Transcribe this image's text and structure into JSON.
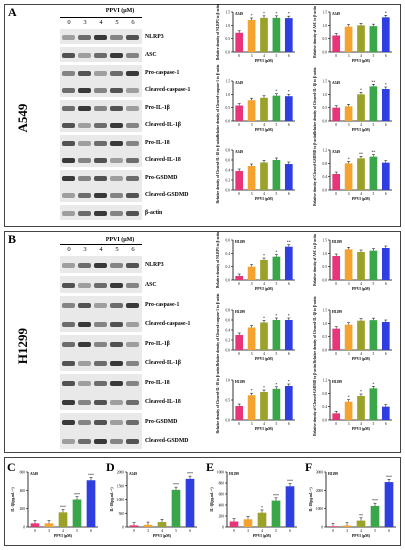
{
  "panels": {
    "A": {
      "label": "A",
      "title": "PPVI (μM)",
      "lanes": [
        "0",
        "3",
        "4",
        "5",
        "6"
      ],
      "cell": "A549",
      "rows": [
        "NLRP3",
        "ASC",
        "Pro-caspase-1",
        "Cleaved-caspase-1",
        "Pro-IL-1β",
        "Cleaved-IL-1β",
        "Pro-IL-18",
        "Cleaved-IL-18",
        "Pro-GSDMD",
        "Cleaved-GSDMD",
        "β-actin"
      ]
    },
    "B": {
      "label": "B",
      "title": "PPVI (μM)",
      "lanes": [
        "0",
        "3",
        "4",
        "5",
        "6"
      ],
      "cell": "H1299",
      "rows": [
        "NLRP3",
        "ASC",
        "Pro-caspase-1",
        "Cleaved-caspase-1",
        "Pro-IL-1β",
        "Cleaved-IL-1β",
        "Pro-IL-18",
        "Cleaved-IL-18",
        "Pro-GSDMD",
        "Cleaved-GSDMD"
      ]
    },
    "C": {
      "label": "C"
    },
    "D": {
      "label": "D"
    },
    "E": {
      "label": "E"
    },
    "F": {
      "label": "F"
    }
  },
  "colors": [
    "#e8357a",
    "#f4a330",
    "#9aa22a",
    "#3aa64a",
    "#2f3ee0"
  ],
  "chart_data": [
    {
      "type": "bar",
      "cell": "A549",
      "ylabel": "Relative density of NLRP3 to β-actin",
      "categories": [
        "0",
        "3",
        "4",
        "5",
        "6"
      ],
      "values": [
        0.72,
        1.2,
        1.28,
        1.28,
        1.27
      ],
      "ylim": [
        0,
        1.5
      ],
      "ticks": [
        "0.0",
        "0.5",
        "1.0",
        "1.5"
      ],
      "sig": [
        "",
        "*",
        "*",
        "*",
        "*"
      ],
      "xlabel": "PPVI (μM)"
    },
    {
      "type": "bar",
      "cell": "A549",
      "ylabel": "Relative density of ASC to β-actin",
      "categories": [
        "0",
        "3",
        "4",
        "5",
        "6"
      ],
      "values": [
        0.62,
        0.95,
        1.0,
        0.97,
        1.3
      ],
      "ylim": [
        0,
        1.5
      ],
      "ticks": [
        "0.0",
        "0.5",
        "1.0",
        "1.5"
      ],
      "sig": [
        "",
        "",
        "",
        "",
        "*"
      ],
      "xlabel": "PPVI (μM)"
    },
    {
      "type": "bar",
      "cell": "A549",
      "ylabel": "Relative density of Cleaved-caspase-1 to β-actin",
      "categories": [
        "0",
        "3",
        "4",
        "5",
        "6"
      ],
      "values": [
        0.58,
        0.78,
        0.87,
        0.95,
        0.93
      ],
      "ylim": [
        0,
        1.5
      ],
      "ticks": [
        "0.0",
        "0.5",
        "1.0",
        "1.5"
      ],
      "sig": [
        "",
        "",
        "",
        "*",
        "*"
      ],
      "xlabel": "PPVI (μM)"
    },
    {
      "type": "bar",
      "cell": "A549",
      "ylabel": "Relative density of Cleaved-IL-1β to β-actin",
      "categories": [
        "0",
        "3",
        "4",
        "5",
        "6"
      ],
      "values": [
        0.5,
        0.55,
        1.0,
        1.3,
        1.2
      ],
      "ylim": [
        0,
        1.5
      ],
      "ticks": [
        "0.0",
        "0.5",
        "1.0",
        "1.5"
      ],
      "sig": [
        "",
        "",
        "*",
        "**",
        "*"
      ],
      "xlabel": "PPVI (μM)"
    },
    {
      "type": "bar",
      "cell": "A549",
      "ylabel": "Relative density of Cleaved-IL-18 to β-actin",
      "categories": [
        "0",
        "3",
        "4",
        "5",
        "6"
      ],
      "values": [
        0.38,
        0.48,
        0.55,
        0.6,
        0.52
      ],
      "ylim": [
        0,
        0.8
      ],
      "ticks": [
        "0.0",
        "0.2",
        "0.4",
        "0.6",
        "0.8"
      ],
      "sig": [
        "",
        "",
        "",
        "",
        ""
      ],
      "xlabel": "PPVI (μM)"
    },
    {
      "type": "bar",
      "cell": "A549",
      "ylabel": "Relative density of Cleaved-GSDMD to β-actin",
      "categories": [
        "0",
        "3",
        "4",
        "5",
        "6"
      ],
      "values": [
        0.48,
        0.8,
        0.95,
        1.0,
        0.82
      ],
      "ylim": [
        0,
        1.2
      ],
      "ticks": [
        "0.0",
        "0.4",
        "0.8",
        "1.2"
      ],
      "sig": [
        "",
        "*",
        "**",
        "**",
        ""
      ],
      "xlabel": "PPVI (μM)"
    },
    {
      "type": "bar",
      "cell": "H1299",
      "ylabel": "Relative density of NLRP3 to β-actin",
      "categories": [
        "0",
        "3",
        "4",
        "5",
        "6"
      ],
      "values": [
        0.06,
        0.2,
        0.3,
        0.35,
        0.5
      ],
      "ylim": [
        0,
        0.6
      ],
      "ticks": [
        "0.0",
        "0.2",
        "0.4",
        "0.6"
      ],
      "sig": [
        "",
        "",
        "*",
        "*",
        "**"
      ],
      "xlabel": "PPVI (μM)"
    },
    {
      "type": "bar",
      "cell": "H1299",
      "ylabel": "Relative density of ASC to β-actin",
      "categories": [
        "0",
        "3",
        "4",
        "5",
        "6"
      ],
      "values": [
        0.9,
        1.15,
        1.05,
        1.1,
        1.2
      ],
      "ylim": [
        0,
        1.5
      ],
      "ticks": [
        "0.0",
        "0.5",
        "1.0",
        "1.5"
      ],
      "sig": [
        "",
        "",
        "",
        "",
        ""
      ],
      "xlabel": "PPVI (μM)"
    },
    {
      "type": "bar",
      "cell": "H1299",
      "ylabel": "Relative density of Cleaved-caspase-1 to β-actin",
      "categories": [
        "0",
        "3",
        "4",
        "5",
        "6"
      ],
      "values": [
        0.3,
        0.45,
        0.55,
        0.6,
        0.6
      ],
      "ylim": [
        0,
        0.8
      ],
      "ticks": [
        "0.0",
        "0.2",
        "0.4",
        "0.6",
        "0.8"
      ],
      "sig": [
        "",
        "",
        "*",
        "*",
        "*"
      ],
      "xlabel": "PPVI (μM)"
    },
    {
      "type": "bar",
      "cell": "H1299",
      "ylabel": "Relative density of Cleaved-IL-1β to β-actin",
      "categories": [
        "0",
        "3",
        "4",
        "5",
        "6"
      ],
      "values": [
        0.8,
        0.95,
        1.1,
        1.12,
        1.05
      ],
      "ylim": [
        0,
        1.5
      ],
      "ticks": [
        "0.0",
        "0.5",
        "1.0",
        "1.5"
      ],
      "sig": [
        "",
        "",
        "",
        "",
        ""
      ],
      "xlabel": "PPVI (μM)"
    },
    {
      "type": "bar",
      "cell": "H1299",
      "ylabel": "Relative density of Cleaved-IL-18 to β-actin",
      "categories": [
        "0",
        "3",
        "4",
        "5",
        "6"
      ],
      "values": [
        0.35,
        0.62,
        0.7,
        0.78,
        0.85
      ],
      "ylim": [
        0,
        1.0
      ],
      "ticks": [
        "0.0",
        "0.5",
        "1.0"
      ],
      "sig": [
        "",
        "*",
        "*",
        "*",
        "*"
      ],
      "xlabel": "PPVI (μM)"
    },
    {
      "type": "bar",
      "cell": "H1299",
      "ylabel": "Relative density of Cleaved-GSDMD to β-actin",
      "categories": [
        "0",
        "3",
        "4",
        "5",
        "6"
      ],
      "values": [
        0.2,
        0.55,
        0.72,
        0.95,
        0.4
      ],
      "ylim": [
        0,
        1.2
      ],
      "ticks": [
        "0.0",
        "0.4",
        "0.8",
        "1.2"
      ],
      "sig": [
        "",
        "*",
        "*",
        "*",
        ""
      ],
      "xlabel": "PPVI (μM)"
    },
    {
      "type": "bar",
      "cell": "A549",
      "ylabel": "IL-1β(pg.mL⁻¹)",
      "categories": [
        "0",
        "3",
        "4",
        "5",
        "6"
      ],
      "values": [
        40,
        40,
        160,
        300,
        510
      ],
      "ylim": [
        0,
        600
      ],
      "ticks": [
        "0",
        "200",
        "400",
        "600"
      ],
      "sig": [
        "",
        "",
        "***",
        "***",
        "***"
      ],
      "xlabel": "PPVI (μM)"
    },
    {
      "type": "bar",
      "cell": "A549",
      "ylabel": "IL-18(pg.mL⁻¹)",
      "categories": [
        "0",
        "3",
        "4",
        "5",
        "6"
      ],
      "values": [
        60,
        80,
        180,
        1350,
        1750
      ],
      "ylim": [
        0,
        2000
      ],
      "ticks": [
        "0",
        "500",
        "1000",
        "1500",
        "2000"
      ],
      "sig": [
        "",
        "",
        "",
        "***",
        "***"
      ],
      "xlabel": "PPVI (μM)"
    },
    {
      "type": "bar",
      "cell": "H1299",
      "ylabel": "IL-1β(pg.mL⁻¹)",
      "categories": [
        "0",
        "3",
        "4",
        "5",
        "6"
      ],
      "values": [
        100,
        140,
        260,
        480,
        740
      ],
      "ylim": [
        0,
        1000
      ],
      "ticks": [
        "0",
        "200",
        "400",
        "600",
        "800",
        "1000"
      ],
      "sig": [
        "",
        "",
        "*",
        "***",
        "***"
      ],
      "xlabel": "PPVI (μM)"
    },
    {
      "type": "bar",
      "cell": "H1299",
      "ylabel": "IL-18(pg.mL⁻¹)",
      "categories": [
        "0",
        "3",
        "4",
        "5",
        "6"
      ],
      "values": [
        40,
        80,
        350,
        1150,
        2450
      ],
      "ylim": [
        0,
        3000
      ],
      "ticks": [
        "0",
        "1000",
        "2000",
        "3000"
      ],
      "sig": [
        "",
        "",
        "**",
        "***",
        "***"
      ],
      "xlabel": "PPVI (μM)"
    }
  ]
}
